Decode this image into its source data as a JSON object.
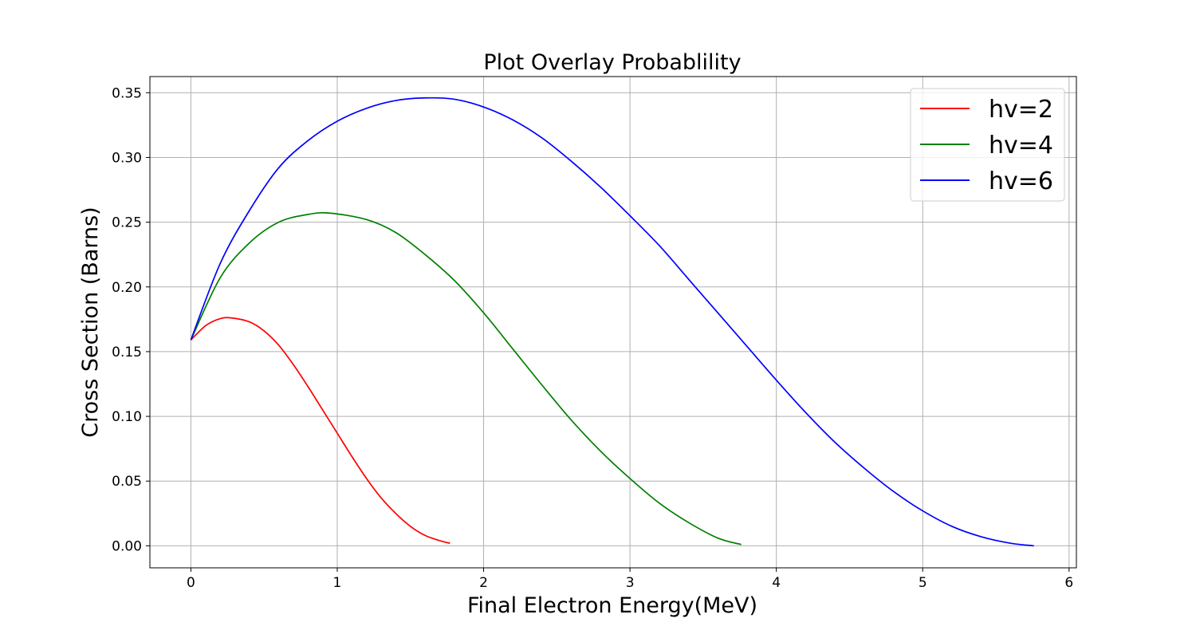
{
  "chart_data": {
    "type": "line",
    "title": "Plot Overlay Probablility",
    "xlabel": "Final Electron Energy(MeV)",
    "ylabel": "Cross Section (Barns)",
    "xlim": [
      -0.28,
      6.05
    ],
    "ylim": [
      -0.017,
      0.3625
    ],
    "xticks": [
      0,
      1,
      2,
      3,
      4,
      5,
      6
    ],
    "xtick_labels": [
      "0",
      "1",
      "2",
      "3",
      "4",
      "5",
      "6"
    ],
    "yticks": [
      0.0,
      0.05,
      0.1,
      0.15,
      0.2,
      0.25,
      0.3,
      0.35
    ],
    "ytick_labels": [
      "0.00",
      "0.05",
      "0.10",
      "0.15",
      "0.20",
      "0.25",
      "0.30",
      "0.35"
    ],
    "grid": true,
    "legend_position": "top-right",
    "series": [
      {
        "name": "hv=2",
        "color": "#ff0000",
        "x": [
          0,
          0.1,
          0.2,
          0.28,
          0.4,
          0.5,
          0.6,
          0.7,
          0.8,
          0.9,
          1.0,
          1.1,
          1.2,
          1.3,
          1.4,
          1.5,
          1.6,
          1.7,
          1.77
        ],
        "y": [
          0.159,
          0.17,
          0.1755,
          0.176,
          0.173,
          0.166,
          0.155,
          0.14,
          0.123,
          0.105,
          0.087,
          0.069,
          0.052,
          0.037,
          0.025,
          0.015,
          0.008,
          0.004,
          0.002
        ]
      },
      {
        "name": "hv=4",
        "color": "#008000",
        "x": [
          0,
          0.2,
          0.4,
          0.6,
          0.8,
          0.95,
          1.2,
          1.4,
          1.6,
          1.8,
          2.0,
          2.2,
          2.4,
          2.6,
          2.8,
          3.0,
          3.2,
          3.4,
          3.6,
          3.76
        ],
        "y": [
          0.159,
          0.207,
          0.234,
          0.25,
          0.256,
          0.257,
          0.252,
          0.242,
          0.225,
          0.205,
          0.18,
          0.152,
          0.124,
          0.097,
          0.073,
          0.052,
          0.033,
          0.018,
          0.006,
          0.001
        ]
      },
      {
        "name": "hv=6",
        "color": "#0000ff",
        "x": [
          0,
          0.2,
          0.4,
          0.6,
          0.8,
          1.0,
          1.2,
          1.4,
          1.6,
          1.8,
          2.0,
          2.2,
          2.4,
          2.6,
          2.8,
          3.0,
          3.2,
          3.4,
          3.6,
          3.8,
          4.0,
          4.2,
          4.4,
          4.6,
          4.8,
          5.0,
          5.2,
          5.4,
          5.6,
          5.76
        ],
        "y": [
          0.159,
          0.218,
          0.259,
          0.292,
          0.313,
          0.328,
          0.338,
          0.344,
          0.346,
          0.345,
          0.339,
          0.329,
          0.315,
          0.297,
          0.277,
          0.255,
          0.232,
          0.206,
          0.18,
          0.154,
          0.128,
          0.103,
          0.08,
          0.06,
          0.042,
          0.027,
          0.015,
          0.007,
          0.002,
          0.0
        ]
      }
    ]
  }
}
